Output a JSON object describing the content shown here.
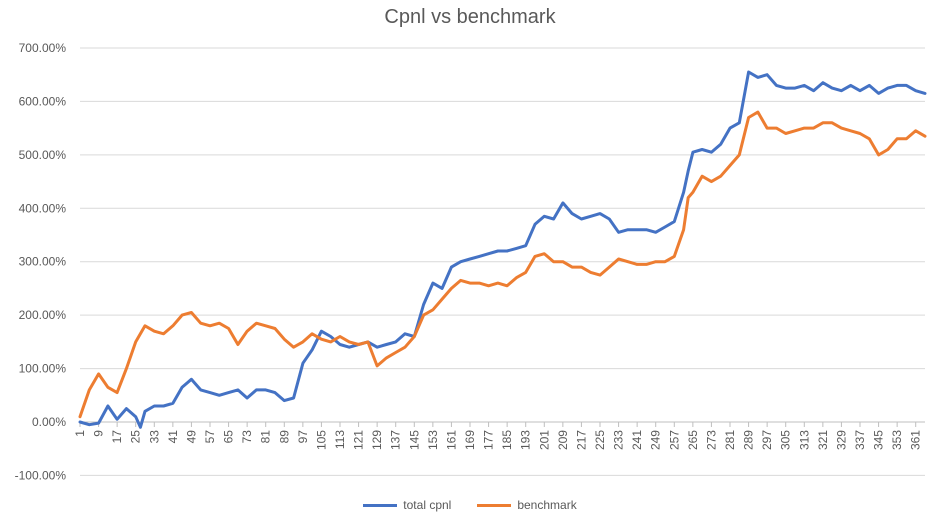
{
  "chart_data": {
    "type": "line",
    "title": "Cpnl vs benchmark",
    "xlabel": "",
    "ylabel": "",
    "ylim": [
      -1.0,
      7.0
    ],
    "y_ticks": [
      7.0,
      6.0,
      5.0,
      4.0,
      3.0,
      2.0,
      1.0,
      0.0,
      -1.0
    ],
    "y_tick_labels": [
      "700.00%",
      "600.00%",
      "500.00%",
      "400.00%",
      "300.00%",
      "200.00%",
      "100.00%",
      "0.00%",
      "-100.00%"
    ],
    "xlim": [
      1,
      365
    ],
    "x_tick_labels": [
      "1",
      "9",
      "17",
      "25",
      "33",
      "41",
      "49",
      "57",
      "65",
      "73",
      "81",
      "89",
      "97",
      "105",
      "113",
      "121",
      "129",
      "137",
      "145",
      "153",
      "161",
      "169",
      "177",
      "185",
      "193",
      "201",
      "209",
      "217",
      "225",
      "233",
      "241",
      "249",
      "257",
      "265",
      "273",
      "281",
      "289",
      "297",
      "305",
      "313",
      "321",
      "329",
      "337",
      "345",
      "353",
      "361"
    ],
    "grid": true,
    "legend_position": "bottom",
    "series": [
      {
        "name": "total cpnl",
        "color": "#4472C4",
        "x": [
          1,
          5,
          9,
          13,
          17,
          21,
          25,
          27,
          29,
          33,
          37,
          41,
          45,
          49,
          53,
          57,
          61,
          65,
          69,
          73,
          77,
          81,
          85,
          89,
          93,
          97,
          101,
          105,
          109,
          113,
          117,
          121,
          125,
          129,
          133,
          137,
          141,
          145,
          149,
          153,
          157,
          161,
          165,
          169,
          173,
          177,
          181,
          185,
          189,
          193,
          197,
          201,
          205,
          209,
          213,
          217,
          221,
          225,
          229,
          233,
          237,
          241,
          245,
          249,
          253,
          257,
          261,
          263,
          265,
          269,
          273,
          277,
          281,
          285,
          289,
          293,
          297,
          301,
          305,
          309,
          313,
          317,
          321,
          325,
          329,
          333,
          337,
          341,
          345,
          349,
          353,
          357,
          361,
          365
        ],
        "values": [
          0.0,
          -0.05,
          -0.02,
          0.3,
          0.05,
          0.25,
          0.1,
          -0.1,
          0.2,
          0.3,
          0.3,
          0.35,
          0.65,
          0.8,
          0.6,
          0.55,
          0.5,
          0.55,
          0.6,
          0.45,
          0.6,
          0.6,
          0.55,
          0.4,
          0.45,
          1.1,
          1.35,
          1.7,
          1.6,
          1.45,
          1.4,
          1.45,
          1.5,
          1.4,
          1.45,
          1.5,
          1.65,
          1.6,
          2.2,
          2.6,
          2.5,
          2.9,
          3.0,
          3.05,
          3.1,
          3.15,
          3.2,
          3.2,
          3.25,
          3.3,
          3.7,
          3.85,
          3.8,
          4.1,
          3.9,
          3.8,
          3.85,
          3.9,
          3.8,
          3.55,
          3.6,
          3.6,
          3.6,
          3.55,
          3.65,
          3.75,
          4.3,
          4.7,
          5.05,
          5.1,
          5.05,
          5.2,
          5.5,
          5.6,
          6.55,
          6.45,
          6.5,
          6.3,
          6.25,
          6.25,
          6.3,
          6.2,
          6.35,
          6.25,
          6.2,
          6.3,
          6.2,
          6.3,
          6.15,
          6.25,
          6.3,
          6.3,
          6.2,
          6.15
        ]
      },
      {
        "name": "benchmark",
        "color": "#ED7D31",
        "x": [
          1,
          5,
          9,
          13,
          17,
          21,
          25,
          29,
          33,
          37,
          41,
          45,
          49,
          53,
          57,
          61,
          65,
          69,
          73,
          77,
          81,
          85,
          89,
          93,
          97,
          101,
          105,
          109,
          113,
          117,
          121,
          125,
          129,
          133,
          137,
          141,
          145,
          149,
          153,
          157,
          161,
          165,
          169,
          173,
          177,
          181,
          185,
          189,
          193,
          197,
          201,
          205,
          209,
          213,
          217,
          221,
          225,
          229,
          233,
          237,
          241,
          245,
          249,
          253,
          257,
          261,
          263,
          265,
          269,
          273,
          277,
          281,
          285,
          289,
          293,
          297,
          301,
          305,
          309,
          313,
          317,
          321,
          325,
          329,
          333,
          337,
          341,
          345,
          349,
          353,
          357,
          361,
          365
        ],
        "values": [
          0.1,
          0.6,
          0.9,
          0.65,
          0.55,
          1.0,
          1.5,
          1.8,
          1.7,
          1.65,
          1.8,
          2.0,
          2.05,
          1.85,
          1.8,
          1.85,
          1.75,
          1.45,
          1.7,
          1.85,
          1.8,
          1.75,
          1.55,
          1.4,
          1.5,
          1.65,
          1.55,
          1.5,
          1.6,
          1.5,
          1.45,
          1.5,
          1.05,
          1.2,
          1.3,
          1.4,
          1.6,
          2.0,
          2.1,
          2.3,
          2.5,
          2.65,
          2.6,
          2.6,
          2.55,
          2.6,
          2.55,
          2.7,
          2.8,
          3.1,
          3.15,
          3.0,
          3.0,
          2.9,
          2.9,
          2.8,
          2.75,
          2.9,
          3.05,
          3.0,
          2.95,
          2.95,
          3.0,
          3.0,
          3.1,
          3.6,
          4.2,
          4.3,
          4.6,
          4.5,
          4.6,
          4.8,
          5.0,
          5.7,
          5.8,
          5.5,
          5.5,
          5.4,
          5.45,
          5.5,
          5.5,
          5.6,
          5.6,
          5.5,
          5.45,
          5.4,
          5.3,
          5.0,
          5.1,
          5.3,
          5.3,
          5.45,
          5.35
        ]
      }
    ]
  }
}
